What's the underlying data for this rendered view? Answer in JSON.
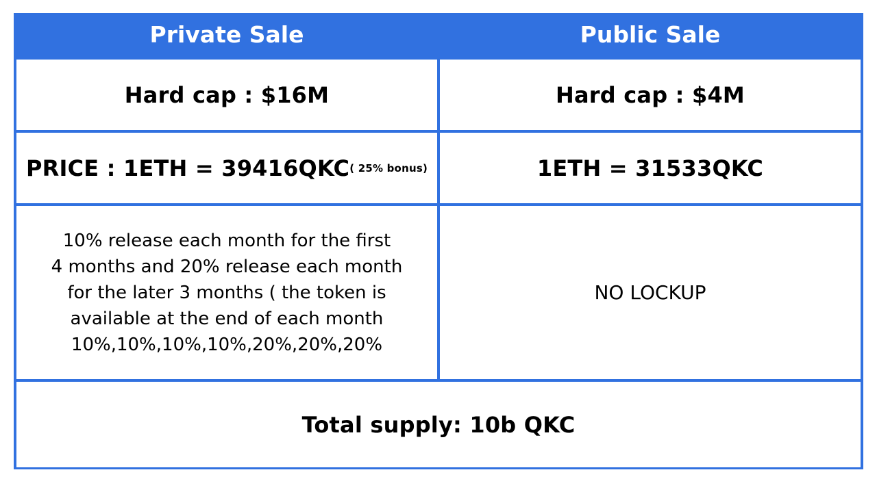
{
  "colors": {
    "border_blue": "#3171e0",
    "header_text": "#ffffff",
    "body_text": "#000000"
  },
  "headers": {
    "private": "Private Sale",
    "public": "Public Sale"
  },
  "hard_cap": {
    "private": "Hard cap : $16M",
    "public": "Hard cap : $4M"
  },
  "price": {
    "private": "PRICE : 1ETH = 39416QKC",
    "private_bonus": "( 25% bonus)",
    "public": "1ETH = 31533QKC"
  },
  "lockup": {
    "private_lines": [
      "10% release each month for the first",
      "4 months and 20% release each month",
      "for the later 3 months ( the token is",
      "available at the end of each month",
      "10%,10%,10%,10%,20%,20%,20%"
    ],
    "public": "NO LOCKUP"
  },
  "total_supply": "Total supply: 10b QKC"
}
